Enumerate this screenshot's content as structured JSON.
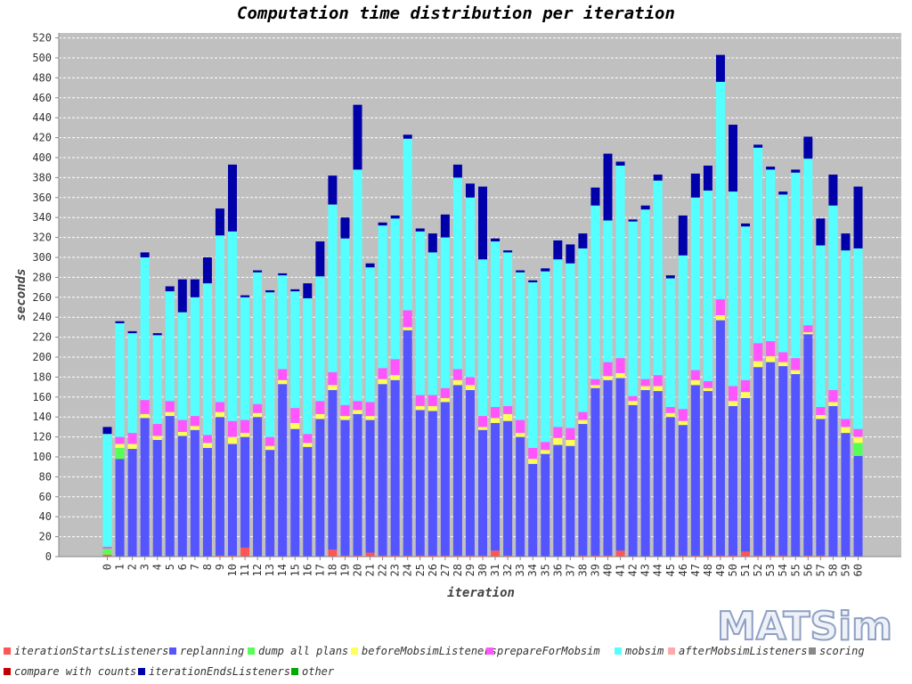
{
  "chart_data": {
    "type": "bar",
    "stacked": true,
    "title": "Computation time distribution per iteration",
    "xlabel": "iteration",
    "ylabel": "seconds",
    "ylim": [
      0,
      525
    ],
    "yticks": [
      0,
      20,
      40,
      60,
      80,
      100,
      120,
      140,
      160,
      180,
      200,
      220,
      240,
      260,
      280,
      300,
      320,
      340,
      360,
      380,
      400,
      420,
      440,
      460,
      480,
      500,
      520
    ],
    "grid": true,
    "legend_position": "bottom",
    "categories": [
      "0",
      "1",
      "2",
      "3",
      "4",
      "5",
      "6",
      "7",
      "8",
      "9",
      "10",
      "11",
      "12",
      "13",
      "14",
      "15",
      "16",
      "17",
      "18",
      "19",
      "20",
      "21",
      "22",
      "23",
      "24",
      "25",
      "26",
      "27",
      "28",
      "29",
      "30",
      "31",
      "32",
      "33",
      "34",
      "35",
      "36",
      "37",
      "38",
      "39",
      "40",
      "41",
      "42",
      "43",
      "44",
      "45",
      "46",
      "47",
      "48",
      "49",
      "50",
      "51",
      "52",
      "53",
      "54",
      "55",
      "56",
      "57",
      "58",
      "59",
      "60"
    ],
    "series": [
      {
        "name": "iterationStartsListeners",
        "color": "#ff5555",
        "values": [
          2,
          0,
          0,
          0,
          0,
          0,
          0,
          0,
          0,
          1,
          1,
          9,
          0,
          0,
          0,
          0,
          0,
          0,
          7,
          1,
          1,
          4,
          1,
          1,
          1,
          1,
          1,
          1,
          1,
          1,
          1,
          6,
          1,
          0,
          0,
          0,
          0,
          0,
          1,
          1,
          1,
          6,
          0,
          0,
          0,
          0,
          1,
          1,
          1,
          1,
          1,
          5,
          1,
          1,
          1,
          0,
          1,
          1,
          0,
          0,
          0
        ]
      },
      {
        "name": "replanning",
        "color": "#5555ff",
        "values": [
          0,
          98,
          108,
          139,
          117,
          141,
          121,
          127,
          109,
          139,
          112,
          111,
          140,
          107,
          173,
          128,
          110,
          138,
          160,
          136,
          142,
          133,
          172,
          176,
          226,
          146,
          145,
          154,
          171,
          166,
          126,
          128,
          135,
          120,
          93,
          103,
          112,
          111,
          132,
          168,
          176,
          173,
          152,
          167,
          166,
          140,
          131,
          171,
          165,
          236,
          150,
          154,
          189,
          194,
          190,
          183,
          222,
          137,
          151,
          124,
          101
        ]
      },
      {
        "name": "dump all plans",
        "color": "#55ff55",
        "values": [
          6,
          11,
          0,
          0,
          0,
          0,
          0,
          0,
          0,
          0,
          0,
          0,
          0,
          0,
          0,
          0,
          0,
          0,
          0,
          0,
          0,
          0,
          0,
          0,
          0,
          0,
          0,
          0,
          0,
          0,
          0,
          0,
          0,
          0,
          0,
          0,
          0,
          0,
          0,
          0,
          0,
          0,
          0,
          0,
          0,
          0,
          0,
          0,
          0,
          0,
          0,
          0,
          0,
          0,
          0,
          0,
          0,
          0,
          0,
          0,
          13
        ]
      },
      {
        "name": "beforeMobsimListeners",
        "color": "#ffff55",
        "values": [
          0,
          4,
          5,
          4,
          4,
          4,
          4,
          4,
          5,
          5,
          7,
          4,
          4,
          4,
          4,
          6,
          4,
          5,
          5,
          4,
          4,
          4,
          5,
          5,
          3,
          4,
          5,
          4,
          5,
          5,
          3,
          5,
          7,
          4,
          5,
          4,
          7,
          6,
          4,
          3,
          4,
          5,
          4,
          4,
          5,
          4,
          4,
          5,
          3,
          5,
          5,
          6,
          6,
          6,
          4,
          4,
          2,
          4,
          4,
          6,
          6
        ]
      },
      {
        "name": "prepareForMobsim",
        "color": "#ff55ff",
        "values": [
          2,
          7,
          11,
          14,
          12,
          11,
          12,
          10,
          8,
          10,
          16,
          13,
          9,
          9,
          11,
          15,
          9,
          13,
          13,
          11,
          9,
          14,
          11,
          16,
          17,
          11,
          11,
          10,
          11,
          8,
          11,
          11,
          8,
          13,
          11,
          8,
          11,
          12,
          8,
          6,
          14,
          15,
          5,
          7,
          11,
          6,
          12,
          10,
          7,
          16,
          15,
          12,
          18,
          15,
          10,
          12,
          7,
          8,
          12,
          8,
          8
        ]
      },
      {
        "name": "mobsim",
        "color": "#55ffff",
        "values": [
          113,
          114,
          100,
          143,
          89,
          110,
          108,
          119,
          152,
          167,
          190,
          123,
          132,
          145,
          94,
          117,
          136,
          125,
          168,
          167,
          232,
          135,
          143,
          141,
          172,
          164,
          143,
          151,
          192,
          180,
          157,
          166,
          154,
          148,
          166,
          171,
          168,
          165,
          164,
          174,
          142,
          193,
          175,
          170,
          195,
          129,
          154,
          173,
          191,
          218,
          195,
          154,
          196,
          172,
          158,
          186,
          167,
          162,
          185,
          169,
          181
        ]
      },
      {
        "name": "afterMobsimListeners",
        "color": "#ffaaaa",
        "values": [
          0,
          0,
          0,
          0,
          0,
          0,
          0,
          0,
          0,
          0,
          0,
          0,
          0,
          0,
          0,
          0,
          0,
          0,
          0,
          0,
          0,
          0,
          0,
          0,
          0,
          0,
          0,
          0,
          0,
          0,
          0,
          0,
          0,
          0,
          0,
          0,
          0,
          0,
          0,
          0,
          0,
          0,
          0,
          0,
          0,
          0,
          0,
          0,
          0,
          0,
          0,
          0,
          0,
          0,
          0,
          0,
          0,
          0,
          0,
          0,
          0
        ]
      },
      {
        "name": "scoring",
        "color": "#888888",
        "values": [
          0,
          0,
          0,
          0,
          0,
          0,
          0,
          0,
          0,
          0,
          0,
          0,
          0,
          0,
          0,
          0,
          0,
          0,
          0,
          0,
          0,
          0,
          0,
          0,
          0,
          0,
          0,
          0,
          0,
          0,
          0,
          0,
          0,
          0,
          0,
          0,
          0,
          0,
          0,
          0,
          0,
          0,
          0,
          0,
          0,
          0,
          0,
          0,
          0,
          0,
          0,
          0,
          0,
          0,
          0,
          0,
          0,
          0,
          0,
          0,
          0
        ]
      },
      {
        "name": "compare with counts",
        "color": "#c00000",
        "values": [
          0,
          0,
          0,
          0,
          0,
          0,
          0,
          0,
          0,
          0,
          0,
          0,
          0,
          0,
          0,
          0,
          0,
          0,
          0,
          0,
          0,
          0,
          0,
          0,
          0,
          0,
          0,
          0,
          0,
          0,
          0,
          0,
          0,
          0,
          0,
          0,
          0,
          0,
          0,
          0,
          0,
          0,
          0,
          0,
          0,
          0,
          0,
          0,
          0,
          0,
          0,
          0,
          0,
          0,
          0,
          0,
          0,
          0,
          0,
          0,
          0
        ]
      },
      {
        "name": "iterationEndsListeners",
        "color": "#0000aa",
        "values": [
          7,
          2,
          2,
          5,
          2,
          5,
          33,
          18,
          26,
          27,
          67,
          2,
          2,
          2,
          2,
          2,
          15,
          35,
          29,
          21,
          65,
          4,
          3,
          3,
          4,
          3,
          19,
          23,
          13,
          14,
          73,
          3,
          2,
          2,
          2,
          3,
          19,
          19,
          15,
          18,
          67,
          4,
          2,
          4,
          6,
          3,
          40,
          24,
          25,
          27,
          67,
          3,
          3,
          3,
          3,
          3,
          22,
          27,
          31,
          17,
          62
        ]
      },
      {
        "name": "other",
        "color": "#00aa00",
        "values": [
          0,
          0,
          0,
          0,
          0,
          0,
          0,
          0,
          0,
          0,
          0,
          0,
          0,
          0,
          0,
          0,
          0,
          0,
          0,
          0,
          0,
          0,
          0,
          0,
          0,
          0,
          0,
          0,
          0,
          0,
          0,
          0,
          0,
          0,
          0,
          0,
          0,
          0,
          0,
          0,
          0,
          0,
          0,
          0,
          0,
          0,
          0,
          0,
          0,
          0,
          0,
          0,
          0,
          0,
          0,
          0,
          0,
          0,
          0,
          0,
          0
        ]
      }
    ]
  },
  "logo": {
    "text": "MATSim"
  }
}
